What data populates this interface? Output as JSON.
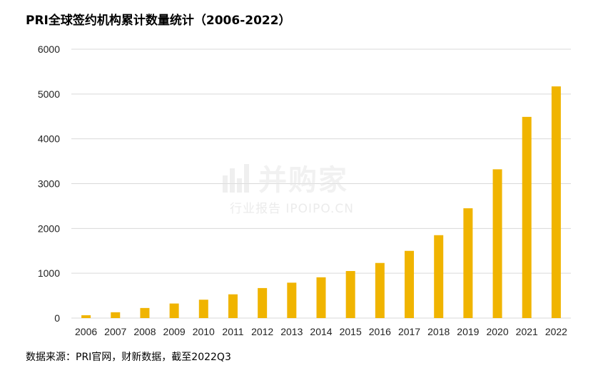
{
  "chart_data": {
    "type": "bar",
    "title": "PRI全球签约机构累计数量统计（2006-2022）",
    "source": "数据来源：PRI官网，财新数据，截至2022Q3",
    "categories": [
      "2006",
      "2007",
      "2008",
      "2009",
      "2010",
      "2011",
      "2012",
      "2013",
      "2014",
      "2015",
      "2016",
      "2017",
      "2018",
      "2019",
      "2020",
      "2021",
      "2022"
    ],
    "values": [
      63,
      130,
      225,
      325,
      410,
      530,
      670,
      790,
      910,
      1050,
      1230,
      1500,
      1850,
      2450,
      3320,
      4490,
      5170
    ],
    "ylim": [
      0,
      6000
    ],
    "yticks": [
      0,
      1000,
      2000,
      3000,
      4000,
      5000,
      6000
    ],
    "grid": true,
    "legend": "none",
    "bar_color": "#f0b400",
    "grid_color": "#d9d9d9"
  },
  "watermark": {
    "main": "并购家",
    "sub": "行业报告 IPOIPO.CN"
  }
}
